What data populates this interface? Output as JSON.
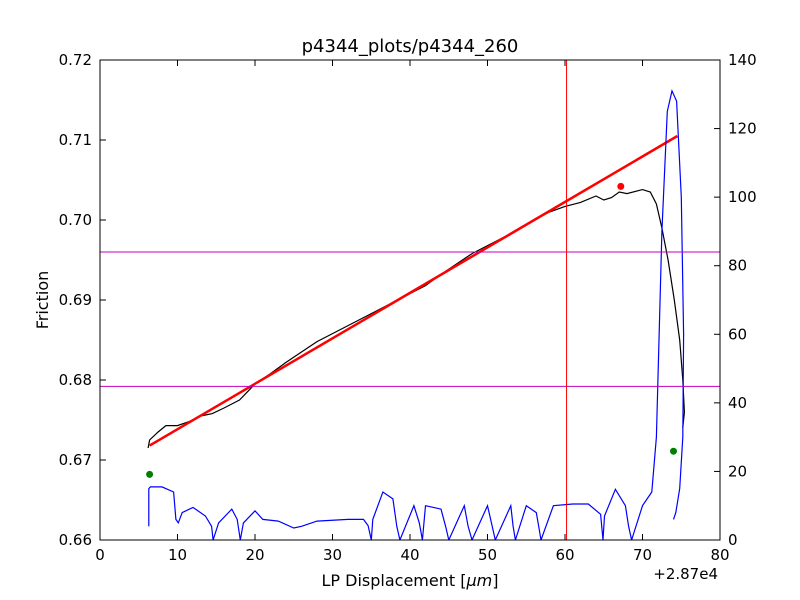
{
  "chart_data": {
    "type": "line",
    "title": "p4344_plots/p4344_260",
    "xlabel_prefix": "LP Displacement [",
    "xlabel_unit": "μm",
    "xlabel_suffix": "]",
    "ylabel": "Friction",
    "x_offset_label": "+2.87e4",
    "xlim": [
      0,
      80
    ],
    "ylim": [
      0.66,
      0.72
    ],
    "y2lim": [
      0,
      140
    ],
    "xticks": [
      "0",
      "10",
      "20",
      "30",
      "40",
      "50",
      "60",
      "70",
      "80"
    ],
    "yticks": [
      "0.66",
      "0.67",
      "0.68",
      "0.69",
      "0.70",
      "0.71",
      "0.72"
    ],
    "y2ticks": [
      "0",
      "20",
      "40",
      "60",
      "80",
      "100",
      "120",
      "140"
    ],
    "grid": false,
    "colors": {
      "friction": "#000000",
      "fit": "#ff0000",
      "secondary": "#0000ff",
      "hlines": "#bf00bf",
      "vline": "#ff0000",
      "start_end_markers": "#007f00",
      "peak_marker": "#ff0000"
    },
    "series": [
      {
        "id": "friction",
        "axis": "left",
        "x": [
          6.2,
          6.4,
          7.5,
          8.5,
          10,
          11.5,
          13,
          14.5,
          16,
          18,
          20,
          22,
          24,
          26,
          28,
          30,
          32,
          34,
          36,
          38,
          40,
          42,
          44,
          46,
          48,
          50,
          52,
          54,
          56,
          58,
          60,
          62,
          64,
          65,
          66,
          67,
          68,
          70,
          71,
          71.8,
          72.5,
          73.3,
          74.1,
          74.8,
          75.2,
          75.4,
          75.2
        ],
        "y": [
          0.6715,
          0.6725,
          0.6735,
          0.6743,
          0.6743,
          0.6748,
          0.6755,
          0.6758,
          0.6765,
          0.6775,
          0.6795,
          0.6808,
          0.6822,
          0.6835,
          0.6848,
          0.6858,
          0.6868,
          0.6878,
          0.6888,
          0.6898,
          0.6908,
          0.6918,
          0.6932,
          0.6945,
          0.6958,
          0.6968,
          0.6978,
          0.6988,
          0.7,
          0.701,
          0.7017,
          0.7022,
          0.703,
          0.7025,
          0.7028,
          0.7035,
          0.7033,
          0.7038,
          0.7035,
          0.702,
          0.699,
          0.695,
          0.69,
          0.685,
          0.68,
          0.676,
          0.674
        ]
      },
      {
        "id": "fit",
        "axis": "left",
        "x": [
          6.4,
          74.5
        ],
        "y": [
          0.6718,
          0.7105
        ]
      },
      {
        "id": "secondary",
        "axis": "right",
        "x": [
          6.3,
          6.3,
          6.5,
          8,
          9.5,
          9.8,
          10.1,
          10.6,
          12,
          13.6,
          14.4,
          14.6,
          15.3,
          17,
          17.7,
          18.1,
          18.5,
          20,
          21,
          23,
          25,
          26,
          28,
          32,
          34,
          34.6,
          35,
          35.2,
          36.5,
          37.8,
          38.3,
          38.7,
          40.5,
          41.2,
          41.6,
          42,
          44,
          44.6,
          45,
          47,
          47.5,
          48,
          50,
          50.6,
          51,
          53,
          53.3,
          53.6,
          55,
          56.3,
          56.6,
          56.9,
          58.5,
          61,
          63,
          64.6,
          64.9,
          65.1,
          66.5,
          67.8,
          68.2,
          68.6,
          70,
          71.2,
          71.8,
          72.5,
          73.2,
          73.8,
          74.4,
          75,
          75.3,
          75.2,
          74.8,
          74.3,
          74.0
        ],
        "y": [
          4,
          15,
          15.5,
          15.5,
          14,
          6,
          5,
          8,
          9.5,
          7,
          4,
          0,
          5,
          9,
          6,
          0,
          5,
          8.5,
          6,
          5.5,
          3.5,
          4,
          5.5,
          6,
          6,
          4.2,
          0,
          6,
          14,
          12,
          4,
          0,
          10,
          5,
          0,
          10,
          9,
          4,
          0,
          10,
          4,
          0,
          10,
          4,
          0,
          10,
          4,
          0,
          10,
          8,
          4,
          0,
          10,
          10.5,
          10.5,
          7.5,
          0,
          7,
          14.8,
          10,
          4,
          0,
          10,
          14,
          30,
          90,
          125,
          131,
          128,
          100,
          60,
          30,
          15,
          8,
          6
        ]
      }
    ],
    "hlines_right_axis": [
      84,
      44.8
    ],
    "vline_x": 60.2,
    "markers": [
      {
        "id": "start-marker",
        "x": 6.4,
        "y": 0.6682,
        "color_key": "start_end_markers"
      },
      {
        "id": "end-marker",
        "x": 74.0,
        "y": 0.6711,
        "color_key": "start_end_markers"
      },
      {
        "id": "peak-marker",
        "x": 67.2,
        "y": 0.7042,
        "color_key": "peak_marker"
      }
    ]
  }
}
